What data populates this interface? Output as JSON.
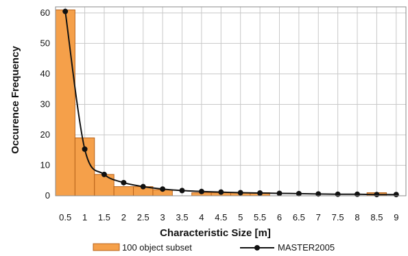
{
  "chart_data": {
    "type": "bar",
    "xlabel": "Characteristic Size [m]",
    "ylabel": "Occurence Frequency",
    "x_ticks": [
      "0.5",
      "1",
      "1.5",
      "2",
      "2.5",
      "3",
      "3.5",
      "4",
      "4.5",
      "5",
      "5.5",
      "6",
      "6.5",
      "7",
      "7.5",
      "8",
      "8.5",
      "9"
    ],
    "y_ticks": [
      0,
      10,
      20,
      30,
      40,
      50,
      60
    ],
    "xlim": [
      0.25,
      9.25
    ],
    "ylim": [
      0,
      62
    ],
    "grid": true,
    "legend_position": "bottom",
    "colors": {
      "bar_fill": "#f5a04a",
      "bar_stroke": "#b8621a",
      "line": "#111111",
      "grid": "#c8c8c8",
      "frame": "#8a8a8a"
    },
    "series": [
      {
        "name": "100 object subset",
        "kind": "bar",
        "bins": [
          {
            "x0": 0.25,
            "x1": 0.75,
            "value": 61
          },
          {
            "x0": 0.75,
            "x1": 1.25,
            "value": 19
          },
          {
            "x0": 1.25,
            "x1": 1.75,
            "value": 7
          },
          {
            "x0": 1.75,
            "x1": 2.25,
            "value": 3
          },
          {
            "x0": 2.25,
            "x1": 2.75,
            "value": 3
          },
          {
            "x0": 2.75,
            "x1": 3.25,
            "value": 2
          },
          {
            "x0": 3.25,
            "x1": 3.75,
            "value": 0
          },
          {
            "x0": 3.75,
            "x1": 4.25,
            "value": 1
          },
          {
            "x0": 4.25,
            "x1": 4.75,
            "value": 1
          },
          {
            "x0": 4.75,
            "x1": 5.25,
            "value": 1
          },
          {
            "x0": 5.25,
            "x1": 5.75,
            "value": 1
          },
          {
            "x0": 5.75,
            "x1": 6.25,
            "value": 0
          },
          {
            "x0": 6.25,
            "x1": 6.75,
            "value": 0
          },
          {
            "x0": 6.75,
            "x1": 7.25,
            "value": 0
          },
          {
            "x0": 7.25,
            "x1": 7.75,
            "value": 0
          },
          {
            "x0": 7.75,
            "x1": 8.25,
            "value": 0
          },
          {
            "x0": 8.25,
            "x1": 8.75,
            "value": 1
          },
          {
            "x0": 8.75,
            "x1": 9.25,
            "value": 0
          }
        ]
      },
      {
        "name": "MASTER2005",
        "kind": "line",
        "x": [
          0.5,
          1,
          1.5,
          2,
          2.5,
          3,
          3.5,
          4,
          4.5,
          5,
          5.5,
          6,
          6.5,
          7,
          7.5,
          8,
          8.5,
          9
        ],
        "y": [
          60.5,
          15.3,
          7.0,
          4.3,
          3.0,
          2.2,
          1.7,
          1.4,
          1.2,
          1.0,
          0.9,
          0.8,
          0.7,
          0.6,
          0.5,
          0.5,
          0.4,
          0.4
        ]
      }
    ]
  }
}
